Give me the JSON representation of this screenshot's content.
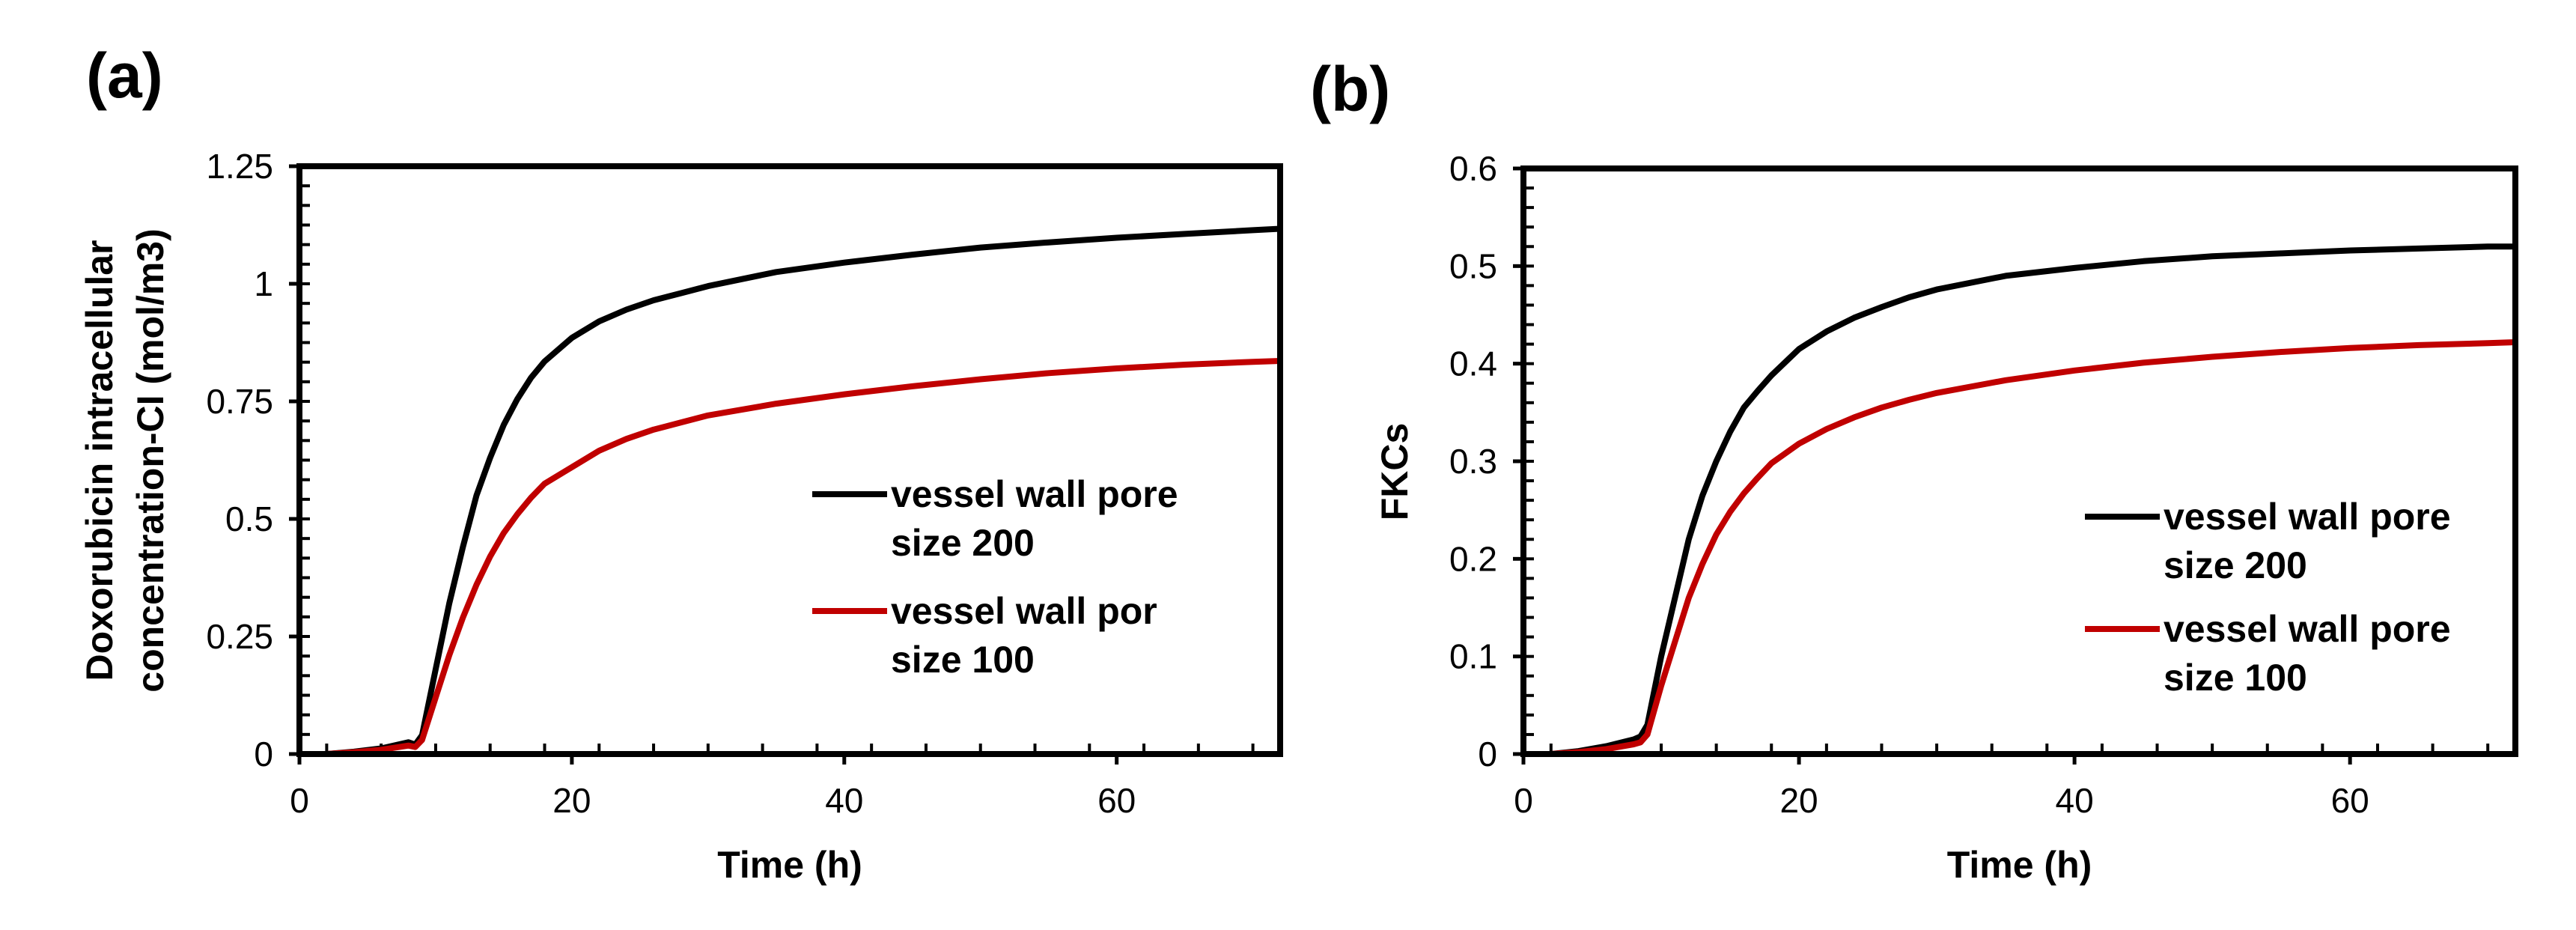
{
  "chart_data": [
    {
      "type": "line",
      "panel_label": "(a)",
      "xlabel": "Time (h)",
      "ylabel": [
        "Doxorubicin intracellular",
        "concentration-CI (mol/m3)"
      ],
      "xlim": [
        0,
        72
      ],
      "ylim": [
        0,
        1.25
      ],
      "xticks": [
        0,
        20,
        40,
        60
      ],
      "xtick_labels": [
        "0",
        "20",
        "40",
        "60"
      ],
      "yticks": [
        0,
        0.25,
        0.5,
        0.75,
        1,
        1.25
      ],
      "ytick_labels": [
        "0",
        "0.25",
        "0.5",
        "0.75",
        "1",
        "1.25"
      ],
      "grid": false,
      "legend_position": "center-right",
      "series": [
        {
          "name": [
            "vessel wall pore",
            "size 200"
          ],
          "color": "#000000",
          "x": [
            0,
            2,
            4,
            6,
            8,
            8.5,
            9,
            10,
            11,
            12,
            13,
            14,
            15,
            16,
            17,
            18,
            20,
            22,
            24,
            26,
            28,
            30,
            35,
            40,
            45,
            50,
            55,
            60,
            65,
            70,
            72
          ],
          "y": [
            0,
            0,
            0.005,
            0.012,
            0.025,
            0.02,
            0.04,
            0.18,
            0.32,
            0.44,
            0.55,
            0.63,
            0.7,
            0.755,
            0.8,
            0.835,
            0.885,
            0.92,
            0.945,
            0.965,
            0.98,
            0.995,
            1.025,
            1.045,
            1.062,
            1.077,
            1.088,
            1.098,
            1.106,
            1.114,
            1.117
          ]
        },
        {
          "name": [
            "vessel wall por",
            "size 100"
          ],
          "color": "#c00000",
          "x": [
            0,
            2,
            4,
            6,
            8,
            8.5,
            9,
            10,
            11,
            12,
            13,
            14,
            15,
            16,
            17,
            18,
            20,
            22,
            24,
            26,
            28,
            30,
            35,
            40,
            45,
            50,
            55,
            60,
            65,
            70,
            72
          ],
          "y": [
            0,
            0,
            0.004,
            0.009,
            0.018,
            0.015,
            0.03,
            0.12,
            0.21,
            0.29,
            0.36,
            0.42,
            0.47,
            0.51,
            0.545,
            0.575,
            0.61,
            0.645,
            0.67,
            0.69,
            0.705,
            0.72,
            0.745,
            0.765,
            0.782,
            0.797,
            0.81,
            0.82,
            0.828,
            0.834,
            0.836
          ]
        }
      ]
    },
    {
      "type": "line",
      "panel_label": "(b)",
      "xlabel": "Time (h)",
      "ylabel": [
        "FKCs"
      ],
      "xlim": [
        0,
        72
      ],
      "ylim": [
        0,
        0.6
      ],
      "xticks": [
        0,
        20,
        40,
        60
      ],
      "xtick_labels": [
        "0",
        "20",
        "40",
        "60"
      ],
      "yticks": [
        0,
        0.1,
        0.2,
        0.3,
        0.4,
        0.5,
        0.6
      ],
      "ytick_labels": [
        "0",
        "0.1",
        "0.2",
        "0.3",
        "0.4",
        "0.5",
        "0.6"
      ],
      "grid": false,
      "legend_position": "center-right",
      "series": [
        {
          "name": [
            "vessel wall pore",
            "size 200"
          ],
          "color": "#000000",
          "x": [
            0,
            2,
            4,
            6,
            8,
            8.5,
            9,
            10,
            11,
            12,
            13,
            14,
            15,
            16,
            17,
            18,
            20,
            22,
            24,
            26,
            28,
            30,
            35,
            40,
            45,
            50,
            55,
            60,
            65,
            70,
            72
          ],
          "y": [
            0,
            0,
            0.003,
            0.008,
            0.015,
            0.018,
            0.03,
            0.1,
            0.16,
            0.22,
            0.265,
            0.3,
            0.33,
            0.355,
            0.372,
            0.388,
            0.415,
            0.433,
            0.447,
            0.458,
            0.468,
            0.476,
            0.49,
            0.498,
            0.505,
            0.51,
            0.513,
            0.516,
            0.518,
            0.52,
            0.52
          ]
        },
        {
          "name": [
            "vessel wall pore",
            "size 100"
          ],
          "color": "#c00000",
          "x": [
            0,
            2,
            4,
            6,
            8,
            8.5,
            9,
            10,
            11,
            12,
            13,
            14,
            15,
            16,
            17,
            18,
            20,
            22,
            24,
            26,
            28,
            30,
            35,
            40,
            45,
            50,
            55,
            60,
            65,
            70,
            72
          ],
          "y": [
            0,
            0,
            0.002,
            0.005,
            0.01,
            0.012,
            0.02,
            0.07,
            0.115,
            0.16,
            0.195,
            0.225,
            0.248,
            0.267,
            0.283,
            0.298,
            0.318,
            0.333,
            0.345,
            0.355,
            0.363,
            0.37,
            0.383,
            0.393,
            0.401,
            0.407,
            0.412,
            0.416,
            0.419,
            0.421,
            0.422
          ]
        }
      ]
    }
  ]
}
